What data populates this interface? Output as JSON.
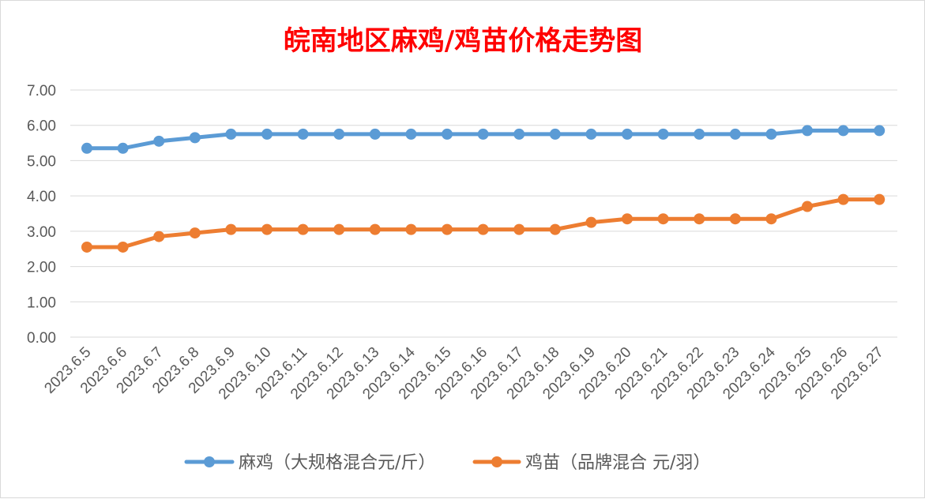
{
  "chart_data": {
    "type": "line",
    "title": "皖南地区麻鸡/鸡苗价格走势图",
    "categories": [
      "2023.6.5",
      "2023.6.6",
      "2023.6.7",
      "2023.6.8",
      "2023.6.9",
      "2023.6.10",
      "2023.6.11",
      "2023.6.12",
      "2023.6.13",
      "2023.6.14",
      "2023.6.15",
      "2023.6.16",
      "2023.6.17",
      "2023.6.18",
      "2023.6.19",
      "2023.6.20",
      "2023.6.21",
      "2023.6.22",
      "2023.6.23",
      "2023.6.24",
      "2023.6.25",
      "2023.6.26",
      "2023.6.27"
    ],
    "series": [
      {
        "name": "麻鸡（大规格混合元/斤）",
        "color": "#5b9bd5",
        "values": [
          5.35,
          5.35,
          5.55,
          5.65,
          5.75,
          5.75,
          5.75,
          5.75,
          5.75,
          5.75,
          5.75,
          5.75,
          5.75,
          5.75,
          5.75,
          5.75,
          5.75,
          5.75,
          5.75,
          5.75,
          5.85,
          5.85,
          5.85
        ]
      },
      {
        "name": "鸡苗（品牌混合 元/羽）",
        "color": "#ed7d31",
        "values": [
          2.55,
          2.55,
          2.85,
          2.95,
          3.05,
          3.05,
          3.05,
          3.05,
          3.05,
          3.05,
          3.05,
          3.05,
          3.05,
          3.05,
          3.25,
          3.35,
          3.35,
          3.35,
          3.35,
          3.35,
          3.7,
          3.9,
          3.9
        ]
      }
    ],
    "yticks": [
      "0.00",
      "1.00",
      "2.00",
      "3.00",
      "4.00",
      "5.00",
      "6.00",
      "7.00"
    ],
    "ylim": [
      0,
      7
    ],
    "grid": true,
    "legend_position": "bottom",
    "title_color": "#ff0000"
  }
}
